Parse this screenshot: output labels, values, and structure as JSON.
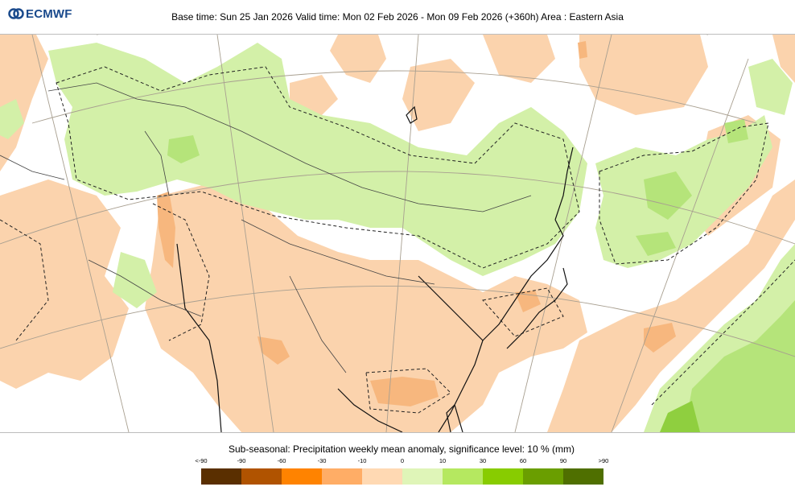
{
  "logo": {
    "text": "ECMWF",
    "icon": "ecmwf-logo-icon",
    "color": "#1a4a8c"
  },
  "header": {
    "title": "Base time: Sun 25 Jan 2026 Valid time: Mon 02 Feb 2026 - Mon 09 Feb 2026 (+360h) Area : Eastern Asia"
  },
  "legend": {
    "title": "Sub-seasonal: Precipitation weekly mean anomaly, significance level: 10 % (mm)",
    "tick_labels": [
      "<-90",
      "-90",
      "-60",
      "-30",
      "-10",
      "0",
      "10",
      "30",
      "60",
      "90",
      ">90"
    ],
    "colors": [
      "#5a2f00",
      "#b05300",
      "#ff8300",
      "#ffad66",
      "#ffd9b3",
      "#dff5b8",
      "#b5e860",
      "#88cc00",
      "#6a9e00",
      "#4f6f00"
    ]
  },
  "map_colors": {
    "dry_light": "#fbd3ad",
    "dry_medium": "#f7b77e",
    "wet_light": "#d3f0a8",
    "wet_medium": "#b5e47a",
    "wet_strong": "#8fcf3f"
  }
}
